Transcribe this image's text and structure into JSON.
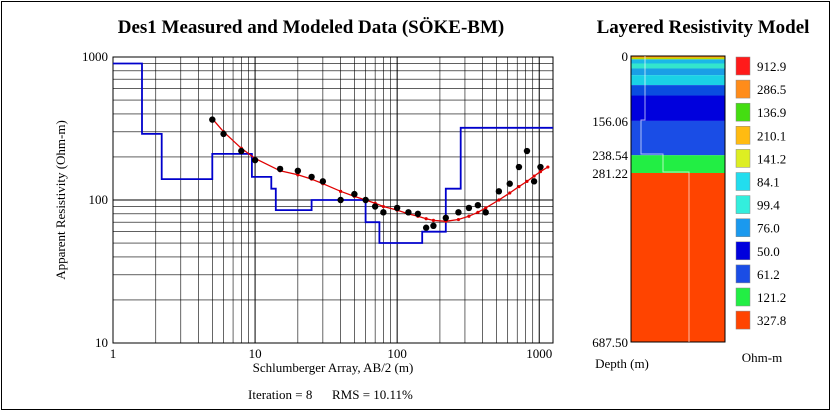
{
  "chart_data": [
    {
      "type": "line",
      "title": "Des1 Measured and Modeled Data (SÖKE-BM)",
      "xlabel": "Schlumberger Array, AB/2 (m)",
      "ylabel": "Apparent Resistivity (Ohm-m)",
      "x_scale": "log",
      "y_scale": "log",
      "xlim": [
        1,
        1250
      ],
      "ylim": [
        10,
        1000
      ],
      "x_ticks": [
        "1",
        "10",
        "100",
        "1000"
      ],
      "y_ticks": [
        "10",
        "100",
        "1000"
      ],
      "grid": true,
      "series": [
        {
          "kind": "measured-points",
          "x": [
            5,
            6,
            8,
            10,
            15,
            20,
            25,
            30,
            40,
            50,
            60,
            70,
            80,
            100,
            120,
            140,
            160,
            180,
            220,
            270,
            320,
            370,
            420,
            520,
            620,
            720,
            820,
            920,
            1020
          ],
          "y": [
            365,
            290,
            220,
            190,
            165,
            160,
            145,
            135,
            100,
            110,
            100,
            90,
            82,
            88,
            82,
            80,
            64,
            66,
            75,
            82,
            88,
            92,
            82,
            115,
            130,
            170,
            220,
            135,
            170
          ]
        },
        {
          "kind": "modeled-curve",
          "color": "#ff0000",
          "x": [
            5,
            6,
            8,
            10,
            15,
            20,
            25,
            30,
            40,
            50,
            60,
            70,
            80,
            100,
            120,
            140,
            160,
            180,
            220,
            270,
            320,
            370,
            420,
            520,
            620,
            720,
            820,
            920,
            1020,
            1150
          ],
          "y": [
            370,
            300,
            230,
            195,
            160,
            150,
            140,
            130,
            115,
            106,
            100,
            95,
            90,
            85,
            80,
            77,
            74,
            72,
            71,
            73,
            77,
            82,
            88,
            100,
            112,
            124,
            135,
            147,
            158,
            170
          ]
        },
        {
          "kind": "model-step",
          "color": "#0000cc",
          "x": [
            1,
            1.6,
            1.6,
            2.2,
            2.2,
            3.6,
            3.6,
            5,
            5,
            9,
            9,
            9.5,
            9.5,
            13,
            13,
            14,
            14,
            25,
            25,
            40,
            40,
            60,
            60,
            75,
            75,
            80,
            80,
            150,
            150,
            175,
            175,
            220,
            220,
            230,
            230,
            280,
            280,
            300,
            300,
            1250
          ],
          "y": [
            900,
            900,
            290,
            290,
            140,
            140,
            140,
            140,
            210,
            210,
            210,
            210,
            145,
            145,
            120,
            120,
            85,
            85,
            100,
            100,
            100,
            100,
            70,
            70,
            50,
            50,
            50,
            50,
            60,
            60,
            60,
            60,
            120,
            120,
            120,
            120,
            320,
            320,
            320,
            320
          ]
        }
      ]
    },
    {
      "type": "bar",
      "title": "Layered Resistivity Model",
      "xlabel": "",
      "ylabel": "Depth (m)",
      "depth_ticks": [
        "0",
        "156.06",
        "238.54",
        "281.22",
        "687.50"
      ],
      "ylim": [
        0,
        687.5
      ],
      "layers": [
        {
          "top": 0,
          "bottom": 4,
          "color": "#ff8800"
        },
        {
          "top": 4,
          "bottom": 8,
          "color": "#bbdd00"
        },
        {
          "top": 8,
          "bottom": 18,
          "color": "#1ab8e8"
        },
        {
          "top": 18,
          "bottom": 30,
          "color": "#33e6cc"
        },
        {
          "top": 30,
          "bottom": 46,
          "color": "#1a9fe6"
        },
        {
          "top": 46,
          "bottom": 70,
          "color": "#1ad2e6"
        },
        {
          "top": 70,
          "bottom": 95,
          "color": "#0a4de0"
        },
        {
          "top": 95,
          "bottom": 156.06,
          "color": "#0000dd"
        },
        {
          "top": 156.06,
          "bottom": 238.54,
          "color": "#1a4de6"
        },
        {
          "top": 238.54,
          "bottom": 281.22,
          "color": "#22ee44"
        },
        {
          "top": 281.22,
          "bottom": 687.5,
          "color": "#ff4400"
        }
      ],
      "legend_title": "Ohm-m",
      "legend": [
        {
          "label": "912.9",
          "color": "#ff1a1a"
        },
        {
          "label": "286.5",
          "color": "#ff8c1a"
        },
        {
          "label": "136.9",
          "color": "#44dd11"
        },
        {
          "label": "210.1",
          "color": "#ffbb11"
        },
        {
          "label": "141.2",
          "color": "#ddee22"
        },
        {
          "label": "84.1",
          "color": "#22ddee"
        },
        {
          "label": "99.4",
          "color": "#33eedd"
        },
        {
          "label": "76.0",
          "color": "#1a99ee"
        },
        {
          "label": "50.0",
          "color": "#0000dd"
        },
        {
          "label": "61.2",
          "color": "#1a4de6"
        },
        {
          "label": "121.2",
          "color": "#22ee44"
        },
        {
          "label": "327.8",
          "color": "#ff4400"
        }
      ]
    }
  ],
  "footer": {
    "iteration": "Iteration = 8",
    "rms": "RMS = 10.11%"
  }
}
